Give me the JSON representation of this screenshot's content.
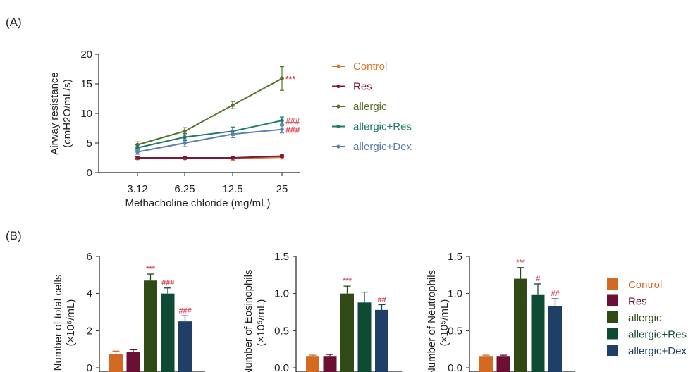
{
  "panel_a_label": "(A)",
  "panel_b_label": "(B)",
  "colors": {
    "Control": "#d9782d",
    "Res": "#7a1a3a",
    "allergic": "#55732a",
    "allergic+Res": "#1f7a6a",
    "allergic+Dex": "#5a7fb0",
    "bar_Control": "#d46a22",
    "bar_Res": "#6b0f35",
    "bar_allergic": "#2f4a14",
    "bar_allergic+Res": "#0f4a35",
    "bar_allergic+Dex": "#1f3f66",
    "sig": "#e04a5a"
  },
  "chart_data": [
    {
      "type": "line",
      "panel": "(A)",
      "xlabel": "Methacholine chloride (mg/mL)",
      "ylabel": [
        "Airway resistance",
        "(cmH2O/mL/s)"
      ],
      "categories": [
        "3.12",
        "6.25",
        "12.5",
        "25"
      ],
      "ylim": [
        0,
        20
      ],
      "yticks": [
        0,
        5,
        10,
        15,
        20
      ],
      "legend_position": "right",
      "series": [
        {
          "name": "Control",
          "values": [
            2.4,
            2.4,
            2.4,
            2.6
          ],
          "errors": [
            0.2,
            0.2,
            0.3,
            0.3
          ],
          "annotation": ""
        },
        {
          "name": "Res",
          "values": [
            2.5,
            2.5,
            2.5,
            2.8
          ],
          "errors": [
            0.2,
            0.2,
            0.2,
            0.2
          ],
          "annotation": ""
        },
        {
          "name": "allergic",
          "values": [
            4.7,
            7.0,
            11.4,
            15.9
          ],
          "errors": [
            0.5,
            0.6,
            0.6,
            2.0
          ],
          "annotation": "***"
        },
        {
          "name": "allergic+Res",
          "values": [
            4.2,
            6.0,
            7.0,
            8.8
          ],
          "errors": [
            0.5,
            0.6,
            0.7,
            0.6
          ],
          "annotation": "###"
        },
        {
          "name": "allergic+Dex",
          "values": [
            3.5,
            5.0,
            6.5,
            7.3
          ],
          "errors": [
            0.4,
            0.6,
            0.6,
            0.6
          ],
          "annotation": "###"
        }
      ]
    },
    {
      "type": "bar",
      "panel": "(B)",
      "ylabel": [
        "Number of total cells",
        "(×10⁵/mL)"
      ],
      "categories": [
        "Control",
        "Res",
        "allergic",
        "allergic+Res",
        "allergic+Dex"
      ],
      "values": [
        0.75,
        0.85,
        4.7,
        4.0,
        2.5
      ],
      "errors": [
        0.15,
        0.12,
        0.35,
        0.3,
        0.3
      ],
      "annotations": [
        "",
        "",
        "***",
        "###",
        "###"
      ],
      "ylim": [
        0,
        6
      ],
      "yticks": [
        "0",
        "2",
        "4",
        "6"
      ]
    },
    {
      "type": "bar",
      "panel": "(B)",
      "ylabel": [
        "Number of Eosinophils",
        "(×10⁵/mL)"
      ],
      "categories": [
        "Control",
        "Res",
        "allergic",
        "allergic+Res",
        "allergic+Dex"
      ],
      "values": [
        0.15,
        0.15,
        1.0,
        0.88,
        0.78
      ],
      "errors": [
        0.02,
        0.03,
        0.1,
        0.14,
        0.07
      ],
      "annotations": [
        "",
        "",
        "***",
        "",
        "##"
      ],
      "ylim": [
        0,
        1.5
      ],
      "yticks": [
        "0.0",
        "0.5",
        "1.0",
        "1.5"
      ]
    },
    {
      "type": "bar",
      "panel": "(B)",
      "ylabel": [
        "Number of Neutrophils",
        "(×10⁵/mL)"
      ],
      "categories": [
        "Control",
        "Res",
        "allergic",
        "allergic+Res",
        "allergic+Dex"
      ],
      "values": [
        0.15,
        0.15,
        1.2,
        0.98,
        0.83
      ],
      "errors": [
        0.02,
        0.02,
        0.15,
        0.15,
        0.1
      ],
      "annotations": [
        "",
        "",
        "***",
        "#",
        "##"
      ],
      "ylim": [
        0,
        1.5
      ],
      "yticks": [
        "0.0",
        "0.5",
        "1.0",
        "1.5"
      ]
    }
  ],
  "bar_legend": [
    "Control",
    "Res",
    "allergic",
    "allergic+Res",
    "allergic+Dex"
  ]
}
